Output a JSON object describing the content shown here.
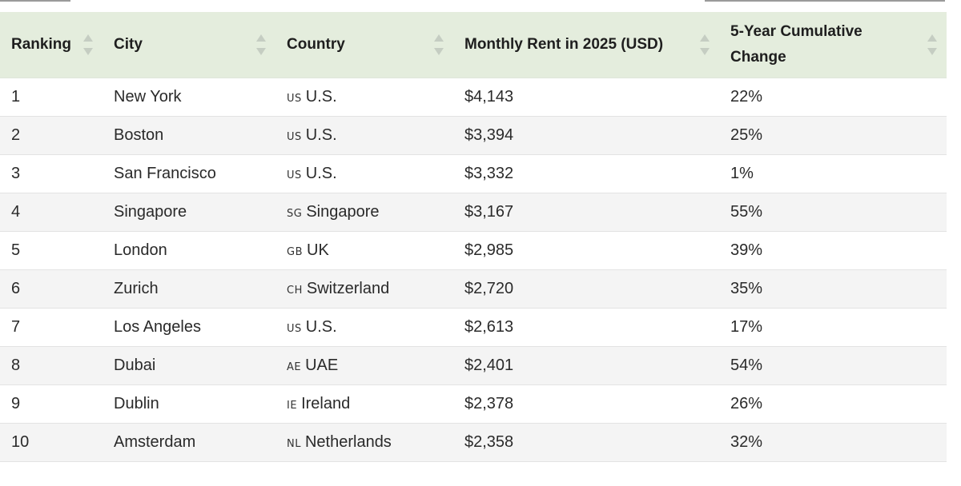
{
  "table": {
    "headers": [
      "Ranking",
      "City",
      "Country",
      "Monthly Rent in 2025 (USD)",
      "5-Year Cumulative Change"
    ],
    "rows": [
      {
        "rank": "1",
        "city": "New York",
        "flag": "US",
        "country": "U.S.",
        "rent": "$4,143",
        "change": "22%"
      },
      {
        "rank": "2",
        "city": "Boston",
        "flag": "US",
        "country": "U.S.",
        "rent": "$3,394",
        "change": "25%"
      },
      {
        "rank": "3",
        "city": "San Francisco",
        "flag": "US",
        "country": "U.S.",
        "rent": "$3,332",
        "change": "1%"
      },
      {
        "rank": "4",
        "city": "Singapore",
        "flag": "SG",
        "country": "Singapore",
        "rent": "$3,167",
        "change": "55%"
      },
      {
        "rank": "5",
        "city": "London",
        "flag": "GB",
        "country": "UK",
        "rent": "$2,985",
        "change": "39%"
      },
      {
        "rank": "6",
        "city": "Zurich",
        "flag": "CH",
        "country": "Switzerland",
        "rent": "$2,720",
        "change": "35%"
      },
      {
        "rank": "7",
        "city": "Los Angeles",
        "flag": "US",
        "country": "U.S.",
        "rent": "$2,613",
        "change": "17%"
      },
      {
        "rank": "8",
        "city": "Dubai",
        "flag": "AE",
        "country": "UAE",
        "rent": "$2,401",
        "change": "54%"
      },
      {
        "rank": "9",
        "city": "Dublin",
        "flag": "IE",
        "country": "Ireland",
        "rent": "$2,378",
        "change": "26%"
      },
      {
        "rank": "10",
        "city": "Amsterdam",
        "flag": "NL",
        "country": "Netherlands",
        "rent": "$2,358",
        "change": "32%"
      }
    ]
  },
  "colors": {
    "header_bg": "#e4eddd",
    "row_alt_bg": "#f4f4f4",
    "sort_icon": "#c5cdc2"
  }
}
